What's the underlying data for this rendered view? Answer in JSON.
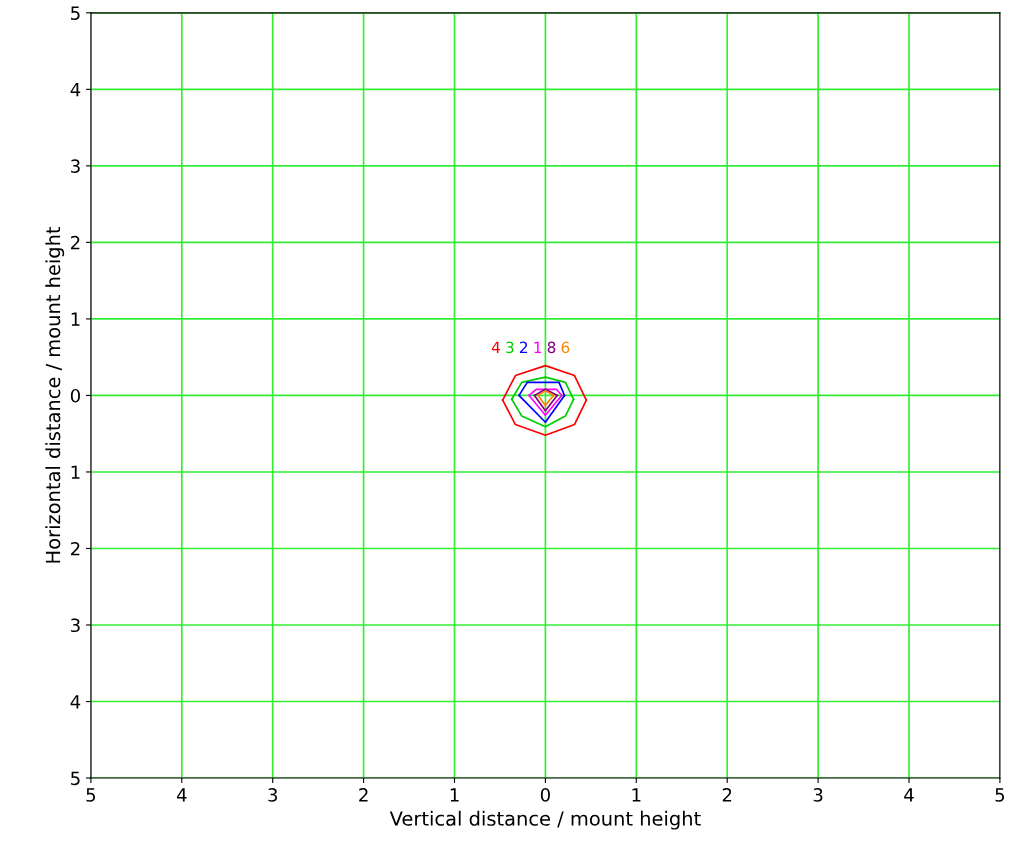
{
  "chart_data": {
    "type": "line",
    "xlabel": "Vertical distance / mount height",
    "ylabel": "Horizontal distance / mount height",
    "xlim": [
      -5,
      5
    ],
    "ylim": [
      -5,
      5
    ],
    "xticks": [
      {
        "value": -5,
        "label": "5"
      },
      {
        "value": -4,
        "label": "4"
      },
      {
        "value": -3,
        "label": "3"
      },
      {
        "value": -2,
        "label": "2"
      },
      {
        "value": -1,
        "label": "1"
      },
      0,
      1,
      2,
      3,
      4,
      5
    ],
    "yticks": [
      {
        "value": -5,
        "label": "5"
      },
      {
        "value": -4,
        "label": "4"
      },
      {
        "value": -3,
        "label": "3"
      },
      {
        "value": -2,
        "label": "2"
      },
      {
        "value": -1,
        "label": "1"
      },
      0,
      1,
      2,
      3,
      4,
      5
    ],
    "grid": true,
    "legend": false,
    "marker": "none",
    "line_style": "solid",
    "series": [
      {
        "name": "4",
        "color": "#ff0000",
        "x": [
          -0.47,
          -0.33,
          0,
          0.32,
          0.45
        ],
        "values": [
          -0.06,
          0.26,
          0.39,
          0.26,
          -0.06
        ]
      },
      {
        "color": "#ff0000",
        "x": [
          -0.47,
          -0.33,
          0,
          0.32,
          0.45
        ],
        "values": [
          -0.06,
          -0.38,
          -0.52,
          -0.38,
          -0.06
        ]
      },
      {
        "name": "3",
        "color": "#00cc00",
        "x": [
          -0.37,
          -0.26,
          0,
          0.22,
          0.31
        ],
        "values": [
          -0.05,
          0.17,
          0.24,
          0.17,
          -0.05
        ]
      },
      {
        "color": "#00cc00",
        "x": [
          -0.37,
          -0.26,
          0,
          0.22,
          0.31
        ],
        "values": [
          -0.05,
          -0.27,
          -0.41,
          -0.27,
          -0.05
        ]
      },
      {
        "name": "2",
        "color": "#0000ff",
        "x": [
          -0.29,
          -0.2,
          0.15,
          0.21
        ],
        "values": [
          0,
          0.17,
          0.17,
          0
        ]
      },
      {
        "color": "#0000ff",
        "x": [
          -0.29,
          0,
          0.21
        ],
        "values": [
          0,
          -0.35,
          0
        ]
      },
      {
        "name": "1",
        "color": "#ff00ff",
        "x": [
          -0.18,
          -0.1,
          0.12,
          0.18
        ],
        "values": [
          0,
          0.08,
          0.08,
          0
        ]
      },
      {
        "color": "#ff00ff",
        "x": [
          -0.18,
          0,
          0.18
        ],
        "values": [
          0,
          -0.26,
          0
        ]
      },
      {
        "name": "8",
        "color": "#800080",
        "x": [
          -0.12,
          0,
          0.13
        ],
        "values": [
          0,
          0.08,
          0
        ]
      },
      {
        "color": "#800080",
        "x": [
          -0.12,
          0,
          0.13
        ],
        "values": [
          0,
          -0.2,
          0
        ]
      },
      {
        "name": "6",
        "color": "#ff8000",
        "x": [
          -0.08,
          0,
          0.09
        ],
        "values": [
          0,
          0.06,
          0
        ]
      },
      {
        "color": "#ff8000",
        "x": [
          -0.08,
          0,
          0.09
        ],
        "values": [
          0,
          -0.13,
          0
        ]
      }
    ]
  }
}
